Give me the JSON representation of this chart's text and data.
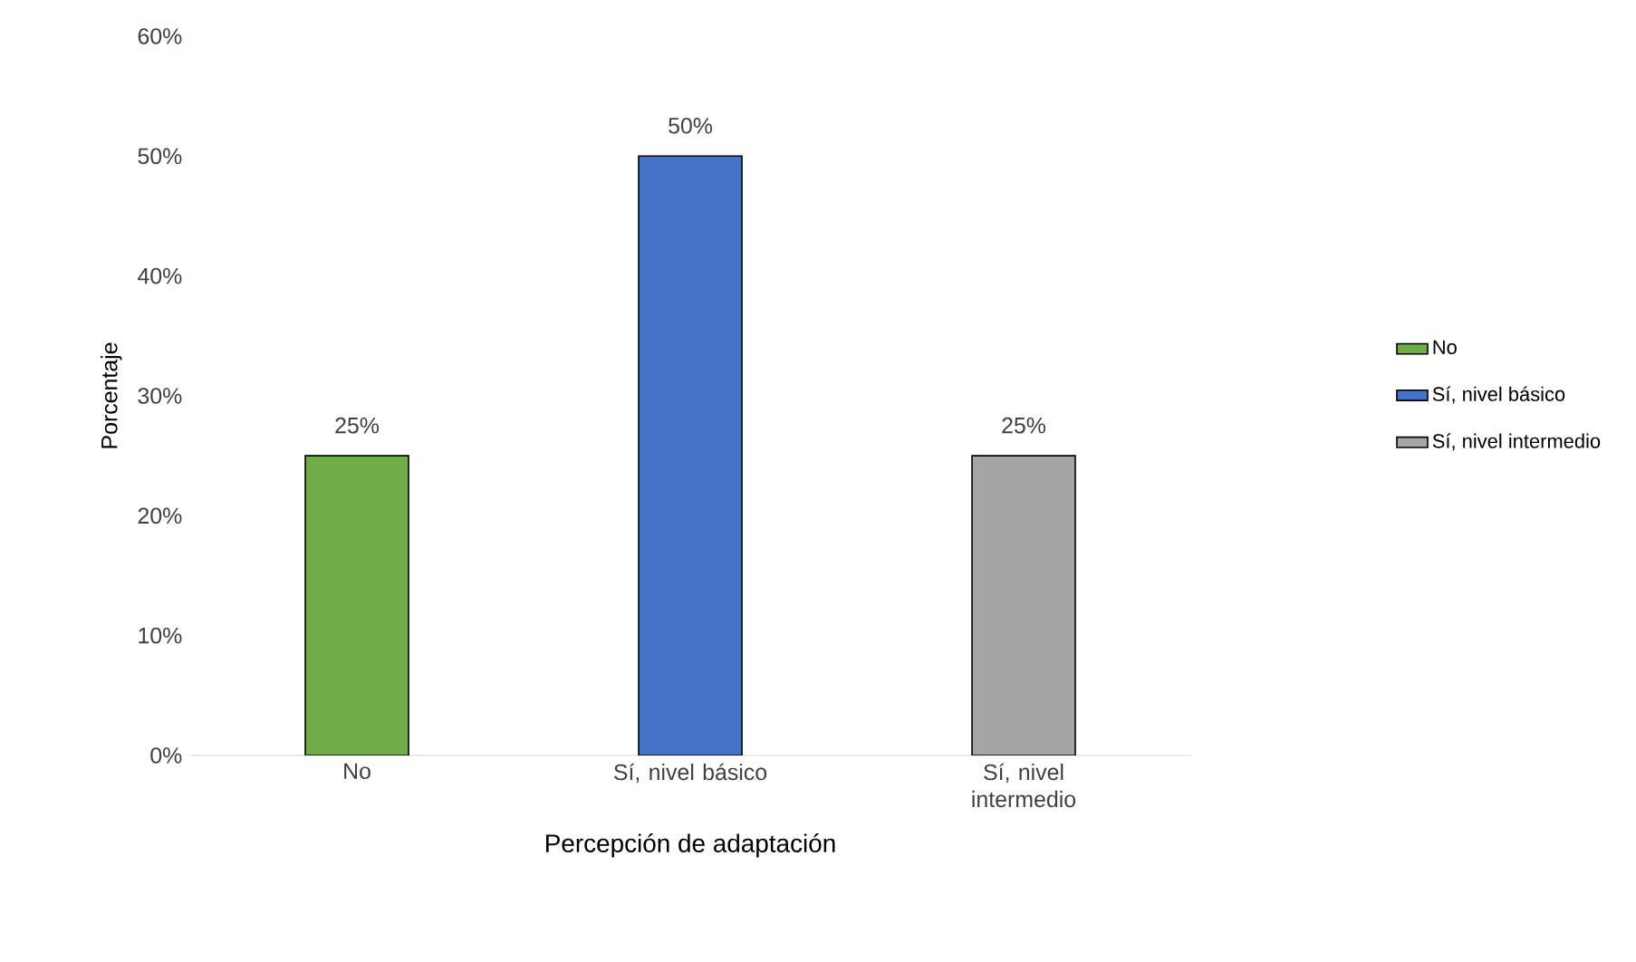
{
  "chart_data": {
    "type": "bar",
    "xlabel": "Percepción de adaptación",
    "ylabel": "Porcentaje",
    "categories": [
      "No",
      "Sí, nivel básico",
      "Sí, nivel intermedio"
    ],
    "series": [
      {
        "name": "No",
        "color": "#70ad47",
        "values": [
          25,
          null,
          null
        ],
        "value_labels": [
          "25%",
          null,
          null
        ]
      },
      {
        "name": "Sí, nivel básico",
        "color": "#4472c4",
        "values": [
          null,
          50,
          null
        ],
        "value_labels": [
          null,
          "50%",
          null
        ]
      },
      {
        "name": "Sí, nivel intermedio",
        "color": "#a5a5a5",
        "values": [
          null,
          null,
          25
        ],
        "value_labels": [
          null,
          null,
          "25%"
        ]
      }
    ],
    "ylim": [
      0,
      60
    ],
    "yticks": [
      {
        "value": 0,
        "label": "0%"
      },
      {
        "value": 10,
        "label": "10%"
      },
      {
        "value": 20,
        "label": "20%"
      },
      {
        "value": 30,
        "label": "30%"
      },
      {
        "value": 40,
        "label": "40%"
      },
      {
        "value": 50,
        "label": "50%"
      },
      {
        "value": 60,
        "label": "60%"
      }
    ],
    "legend": "right"
  }
}
